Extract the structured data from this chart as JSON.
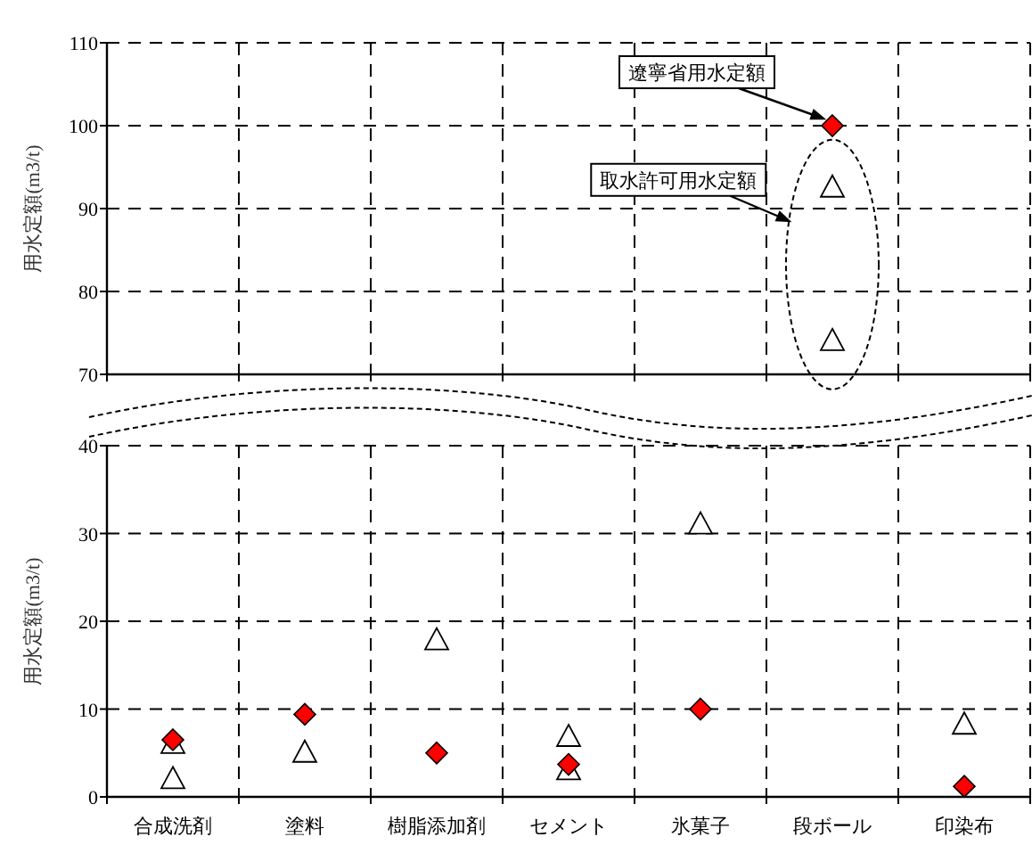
{
  "chart_data": [
    {
      "type": "scatter",
      "categories": [
        null,
        null,
        null,
        null,
        null,
        null,
        null
      ],
      "ylim": [
        70,
        110
      ],
      "yticks": [
        70,
        80,
        90,
        100,
        110
      ],
      "ylabel": "用水定額(m3/t)",
      "grid": true,
      "tick_labels": "y",
      "series": [
        {
          "color": "#ff0000",
          "marker": "diamond",
          "values": [
            null,
            null,
            null,
            null,
            null,
            100,
            null
          ]
        },
        {
          "color": "#ffffff",
          "marker": "triangle",
          "values": [
            null,
            null,
            null,
            null,
            null,
            92.5,
            null
          ]
        },
        {
          "color": "#ffffff",
          "marker": "triangle",
          "values": [
            null,
            null,
            null,
            null,
            null,
            74,
            null
          ]
        }
      ],
      "annotations": [
        "遼寧省用水定額",
        "取水許可用水定額"
      ]
    },
    {
      "type": "scatter",
      "categories": [
        "合成洗剤",
        "塗料",
        "樹脂添加剤",
        "セメント",
        "氷菓子",
        "段ボール",
        "印染布"
      ],
      "ylim": [
        0,
        40
      ],
      "yticks": [
        0,
        10,
        20,
        30,
        40
      ],
      "ylabel": "用水定額(m3/t)",
      "grid": true,
      "series": [
        {
          "color": "#ffffff",
          "marker": "triangle",
          "x": [
            "合成洗剤",
            "合成洗剤",
            "塗料",
            "樹脂添加剤",
            "セメント",
            "セメント",
            "氷菓子",
            "印染布"
          ],
          "values": [
            6,
            2,
            5,
            17.8,
            6.8,
            3,
            31,
            8.2
          ]
        },
        {
          "color": "#ff0000",
          "marker": "diamond",
          "x": [
            "合成洗剤",
            "塗料",
            "樹脂添加剤",
            "セメント",
            "氷菓子",
            "印染布"
          ],
          "values": [
            6.5,
            9.4,
            5,
            3.7,
            10,
            1.2
          ]
        }
      ]
    }
  ]
}
